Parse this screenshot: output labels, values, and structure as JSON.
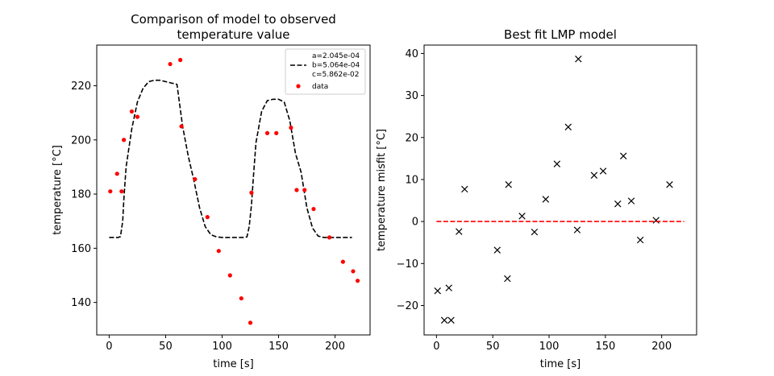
{
  "chart_data": [
    {
      "type": "scatter",
      "title": "Comparison of model to observed temperature value",
      "title_lines": [
        "Comparison of model to observed",
        "temperature value"
      ],
      "xlabel": "time [s]",
      "ylabel": "temperature [°C]",
      "xlim": [
        -11,
        231
      ],
      "ylim": [
        128,
        235
      ],
      "xticks": [
        0,
        50,
        100,
        150,
        200
      ],
      "yticks": [
        140,
        160,
        180,
        200,
        220
      ],
      "legend_position": "upper-right",
      "series": [
        {
          "name": "a=2.045e-04\nb=5.064e-04\nc=5.862e-02",
          "legend_lines": [
            "a=2.045e-04",
            "b=5.064e-04",
            "c=5.862e-02"
          ],
          "style": "dashed-line",
          "color": "#000000",
          "x": [
            0,
            8,
            10,
            12,
            13,
            15,
            20,
            25,
            30,
            35,
            40,
            45,
            50,
            55,
            60,
            65,
            70,
            75,
            80,
            85,
            90,
            95,
            100,
            110,
            120,
            122,
            124,
            126,
            128,
            130,
            135,
            140,
            145,
            150,
            155,
            160,
            165,
            170,
            175,
            180,
            185,
            190,
            195,
            205,
            215
          ],
          "y": [
            164,
            164,
            164.3,
            170,
            178,
            190,
            204,
            214,
            219,
            221.5,
            222,
            222,
            221.5,
            221,
            220.5,
            205,
            194,
            185,
            175,
            168,
            165,
            164.2,
            164,
            164,
            164,
            164.2,
            168,
            176,
            188,
            199,
            210.5,
            214.5,
            215,
            215,
            214,
            207,
            195,
            188,
            175,
            167.5,
            164.5,
            164,
            164,
            164,
            164
          ]
        },
        {
          "name": "data",
          "style": "dots",
          "color": "#ff0000",
          "x": [
            1,
            7,
            11,
            13,
            20,
            25,
            54,
            63,
            64,
            76,
            87,
            97,
            107,
            117,
            125,
            126,
            140,
            148,
            161,
            166,
            173,
            181,
            195,
            207,
            216,
            220
          ],
          "y": [
            181,
            187.5,
            181,
            200,
            210.5,
            208.5,
            228,
            229.5,
            205,
            185.5,
            171.5,
            159,
            150,
            141.5,
            132.5,
            180.5,
            202.5,
            202.5,
            204.5,
            181.5,
            181.5,
            174.5,
            164,
            155,
            151.5,
            148
          ]
        }
      ]
    },
    {
      "type": "scatter",
      "title": "Best fit LMP model",
      "xlabel": "time [s]",
      "ylabel": "temperature misfit [°C]",
      "xlim": [
        -11,
        231
      ],
      "ylim": [
        -27,
        42
      ],
      "xticks": [
        0,
        50,
        100,
        150,
        200
      ],
      "yticks": [
        -20,
        -10,
        0,
        10,
        20,
        30,
        40
      ],
      "series": [
        {
          "name": "misfit",
          "style": "x-markers",
          "color": "#000000",
          "x": [
            1,
            7,
            11,
            13,
            20,
            25,
            54,
            63,
            64,
            76,
            87,
            97,
            107,
            117,
            125,
            126,
            140,
            148,
            161,
            166,
            173,
            181,
            195,
            207
          ],
          "y": [
            -16.5,
            -23.5,
            -15.8,
            -23.5,
            -2.4,
            7.7,
            -6.8,
            -13.6,
            8.8,
            1.3,
            -2.5,
            5.3,
            13.7,
            22.5,
            -2,
            38.7,
            11,
            12,
            4.2,
            15.6,
            4.9,
            -4.4,
            0.3,
            8.8
          ]
        },
        {
          "name": "zero-line",
          "style": "dashed-line",
          "color": "#ff0000",
          "x": [
            0,
            220
          ],
          "y": [
            0,
            0
          ]
        }
      ]
    }
  ]
}
